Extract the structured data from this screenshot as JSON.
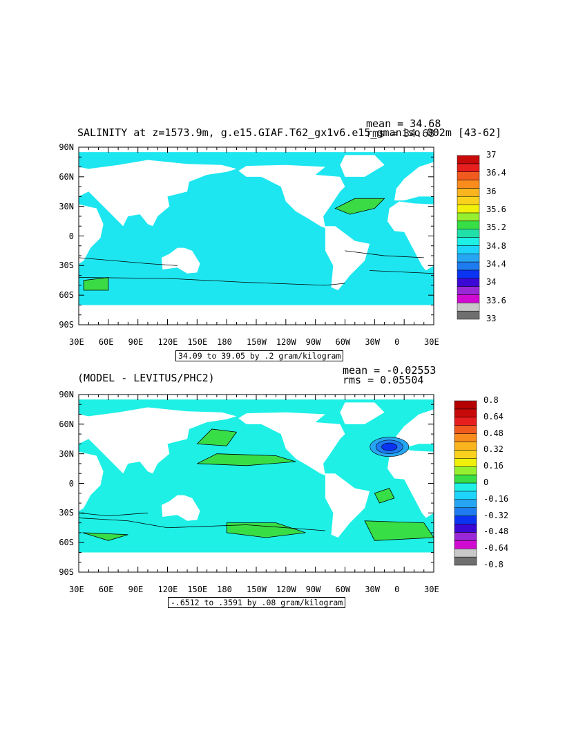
{
  "chart_data": [
    {
      "type": "heatmap",
      "title": "SALINITY at z=1573.9m, g.e15.GIAF.T62_gx1v6.e15_gmaniso.002m [43-62]",
      "stats": {
        "mean": "mean = 34.68",
        "rms": "rms = 34.68"
      },
      "x_ticks": [
        "30E",
        "60E",
        "90E",
        "120E",
        "150E",
        "180",
        "150W",
        "120W",
        "90W",
        "60W",
        "30W",
        "0",
        "30E"
      ],
      "y_ticks": [
        "90N",
        "60N",
        "30N",
        "0",
        "30S",
        "60S",
        "90S"
      ],
      "xlim": [
        30,
        390
      ],
      "ylim": [
        -90,
        90
      ],
      "contour_info": "34.09 to 39.05 by .2 gram/kilogram",
      "colorbar": {
        "labels": [
          "37",
          "36.4",
          "36",
          "35.6",
          "35.2",
          "34.8",
          "34.4",
          "34",
          "33.6",
          "33"
        ],
        "levels": [
          33,
          33.2,
          33.4,
          33.6,
          33.8,
          34,
          34.2,
          34.4,
          34.6,
          34.8,
          35,
          35.2,
          35.4,
          35.6,
          35.8,
          36,
          36.2,
          36.4,
          36.6,
          36.8,
          37
        ],
        "colors": [
          "#6f6f6f",
          "#c8c8c8",
          "#d10ad1",
          "#9a28d6",
          "#3b08d6",
          "#0a34f2",
          "#1e7cf0",
          "#26a6f2",
          "#1ed4fa",
          "#1ef0e6",
          "#20e0a8",
          "#38de46",
          "#96f030",
          "#f0f00a",
          "#fad21e",
          "#fab41e",
          "#fa8c1e",
          "#f05a1e",
          "#e61e1e",
          "#c80a0a"
        ]
      },
      "fill_color": "#1ee6f0",
      "salty_color": "#3adb44"
    },
    {
      "type": "heatmap",
      "title": "(MODEL - LEVITUS/PHC2)",
      "stats": {
        "mean": "mean = -0.02553",
        "rms": "rms = 0.05504"
      },
      "x_ticks": [
        "30E",
        "60E",
        "90E",
        "120E",
        "150E",
        "180",
        "150W",
        "120W",
        "90W",
        "60W",
        "30W",
        "0",
        "30E"
      ],
      "y_ticks": [
        "90N",
        "60N",
        "30N",
        "0",
        "30S",
        "60S",
        "90S"
      ],
      "xlim": [
        30,
        390
      ],
      "ylim": [
        -90,
        90
      ],
      "contour_info": "-.6512 to .3591 by .08 gram/kilogram",
      "colorbar": {
        "labels": [
          "0.8",
          "0.64",
          "0.48",
          "0.32",
          "0.16",
          "0",
          "-0.16",
          "-0.32",
          "-0.48",
          "-0.64",
          "-0.8"
        ],
        "levels": [
          -0.8,
          -0.72,
          -0.64,
          -0.56,
          -0.48,
          -0.4,
          -0.32,
          -0.24,
          -0.16,
          -0.08,
          0,
          0.08,
          0.16,
          0.24,
          0.32,
          0.4,
          0.48,
          0.56,
          0.64,
          0.72,
          0.8
        ],
        "colors": [
          "#6f6f6f",
          "#c8c8c8",
          "#d10ad1",
          "#9a28d6",
          "#3b08d6",
          "#0a34f2",
          "#1e7cf0",
          "#26a6f2",
          "#1ed4fa",
          "#1ef0e6",
          "#38de46",
          "#96f030",
          "#f0f00a",
          "#fad21e",
          "#fab41e",
          "#fa8c1e",
          "#f05a1e",
          "#e61e1e",
          "#c80a0a",
          "#b40000"
        ]
      },
      "fill_color": "#1ef0e6",
      "positive_color": "#38de46"
    }
  ]
}
